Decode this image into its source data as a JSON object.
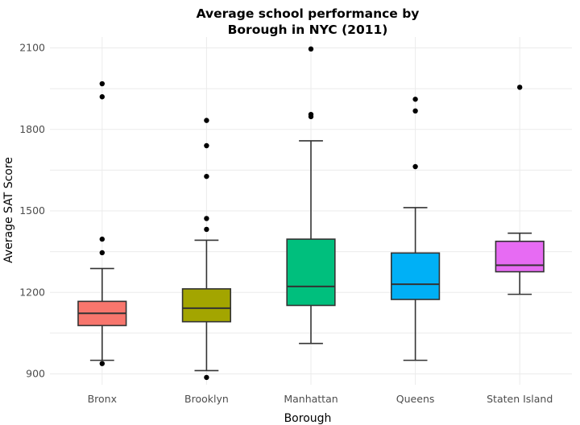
{
  "chart_data": {
    "type": "boxplot",
    "title_lines": [
      "Average school performance by",
      "Borough in NYC (2011)"
    ],
    "xlabel": "Borough",
    "ylabel": "Average SAT Score",
    "ylim": [
      860,
      2140
    ],
    "yticks": [
      900,
      1200,
      1500,
      1800,
      2100
    ],
    "grid": true,
    "legend": "none",
    "categories": [
      "Bronx",
      "Brooklyn",
      "Manhattan",
      "Queens",
      "Staten Island"
    ],
    "boxes": [
      {
        "category": "Bronx",
        "color": "#F8766D",
        "whisker_low": 950,
        "q1": 1078,
        "median": 1123,
        "q3": 1167,
        "whisker_high": 1288,
        "outliers": [
          938,
          1346,
          1396,
          1920,
          1968
        ]
      },
      {
        "category": "Brooklyn",
        "color": "#A3A500",
        "whisker_low": 912,
        "q1": 1092,
        "median": 1142,
        "q3": 1213,
        "whisker_high": 1392,
        "outliers": [
          887,
          1432,
          1472,
          1627,
          1740,
          1833
        ]
      },
      {
        "category": "Manhattan",
        "color": "#00BF7D",
        "whisker_low": 1012,
        "q1": 1152,
        "median": 1222,
        "q3": 1396,
        "whisker_high": 1758,
        "outliers": [
          1847,
          1855,
          2096
        ]
      },
      {
        "category": "Queens",
        "color": "#00B0F6",
        "whisker_low": 950,
        "q1": 1174,
        "median": 1230,
        "q3": 1345,
        "whisker_high": 1512,
        "outliers": [
          1663,
          1868,
          1911
        ]
      },
      {
        "category": "Staten Island",
        "color": "#E76BF3",
        "whisker_low": 1193,
        "q1": 1276,
        "median": 1300,
        "q3": 1388,
        "whisker_high": 1418,
        "outliers": [
          1955
        ]
      }
    ]
  }
}
